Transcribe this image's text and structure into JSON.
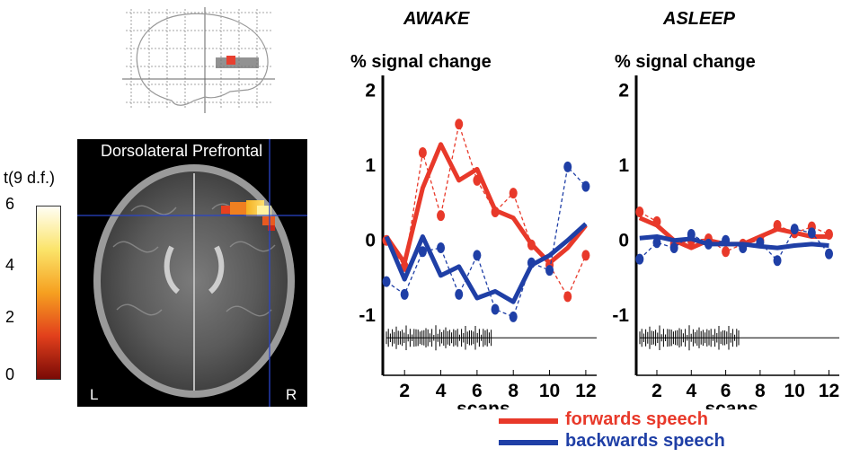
{
  "brain": {
    "region_label": "Dorsolateral Prefrontal",
    "left_label": "L",
    "right_label": "R"
  },
  "colorbar": {
    "label": "t(9 d.f.)",
    "ticks": [
      "6",
      "4",
      "2",
      "0"
    ],
    "range": [
      0,
      6
    ]
  },
  "legend": {
    "forward": {
      "label": "forwards speech",
      "color": "#e8392a"
    },
    "backward": {
      "label": "backwards speech",
      "color": "#1f3fa6"
    }
  },
  "chart_data": [
    {
      "type": "line",
      "title": "AWAKE",
      "ylabel": "% signal change",
      "xlabel": "scans",
      "x": [
        1,
        2,
        3,
        4,
        5,
        6,
        7,
        8,
        9,
        10,
        11,
        12
      ],
      "xticks": [
        2,
        4,
        6,
        8,
        10,
        12
      ],
      "yticks": [
        -1,
        0,
        1,
        2
      ],
      "ylim": [
        -1.8,
        2.2
      ],
      "xlim": [
        0.8,
        12.6
      ],
      "series": [
        {
          "name": "forwards speech",
          "kind": "points",
          "color": "#e8392a",
          "values": [
            0.0,
            -0.35,
            1.17,
            0.33,
            1.55,
            0.8,
            0.38,
            0.63,
            -0.06,
            -0.33,
            -0.75,
            -0.2
          ]
        },
        {
          "name": "forwards speech",
          "kind": "smoothed",
          "color": "#e8392a",
          "values": [
            0.05,
            -0.3,
            0.7,
            1.28,
            0.8,
            0.95,
            0.4,
            0.3,
            -0.05,
            -0.3,
            -0.1,
            0.2
          ]
        },
        {
          "name": "backwards speech",
          "kind": "points",
          "color": "#1f3fa6",
          "values": [
            -0.55,
            -0.72,
            -0.15,
            -0.1,
            -0.72,
            -0.2,
            -0.92,
            -1.02,
            -0.3,
            -0.4,
            0.98,
            0.72
          ]
        },
        {
          "name": "backwards speech",
          "kind": "smoothed",
          "color": "#1f3fa6",
          "values": [
            0.05,
            -0.52,
            0.05,
            -0.47,
            -0.35,
            -0.77,
            -0.68,
            -0.82,
            -0.33,
            -0.2,
            0.0,
            0.22
          ]
        }
      ]
    },
    {
      "type": "line",
      "title": "ASLEEP",
      "ylabel": "% signal change",
      "xlabel": "scans",
      "x": [
        1,
        2,
        3,
        4,
        5,
        6,
        7,
        8,
        9,
        10,
        11,
        12
      ],
      "xticks": [
        2,
        4,
        6,
        8,
        10,
        12
      ],
      "yticks": [
        -1,
        0,
        1,
        2
      ],
      "ylim": [
        -1.8,
        2.2
      ],
      "xlim": [
        0.8,
        12.6
      ],
      "series": [
        {
          "name": "forwards speech",
          "kind": "points",
          "color": "#e8392a",
          "values": [
            0.38,
            0.25,
            -0.05,
            0.0,
            0.02,
            -0.15,
            -0.05,
            0.0,
            0.2,
            0.1,
            0.18,
            0.08
          ]
        },
        {
          "name": "forwards speech",
          "kind": "smoothed",
          "color": "#e8392a",
          "values": [
            0.3,
            0.2,
            0.0,
            -0.1,
            0.0,
            -0.05,
            -0.05,
            0.05,
            0.15,
            0.1,
            0.05,
            0.05
          ]
        },
        {
          "name": "backwards speech",
          "kind": "points",
          "color": "#1f3fa6",
          "values": [
            -0.25,
            -0.03,
            -0.1,
            0.08,
            -0.05,
            0.0,
            -0.1,
            -0.03,
            -0.27,
            0.15,
            0.1,
            -0.18
          ]
        },
        {
          "name": "backwards speech",
          "kind": "smoothed",
          "color": "#1f3fa6",
          "values": [
            0.03,
            0.05,
            0.0,
            0.02,
            -0.05,
            -0.05,
            -0.05,
            -0.08,
            -0.1,
            -0.07,
            -0.05,
            -0.07
          ]
        }
      ]
    }
  ]
}
